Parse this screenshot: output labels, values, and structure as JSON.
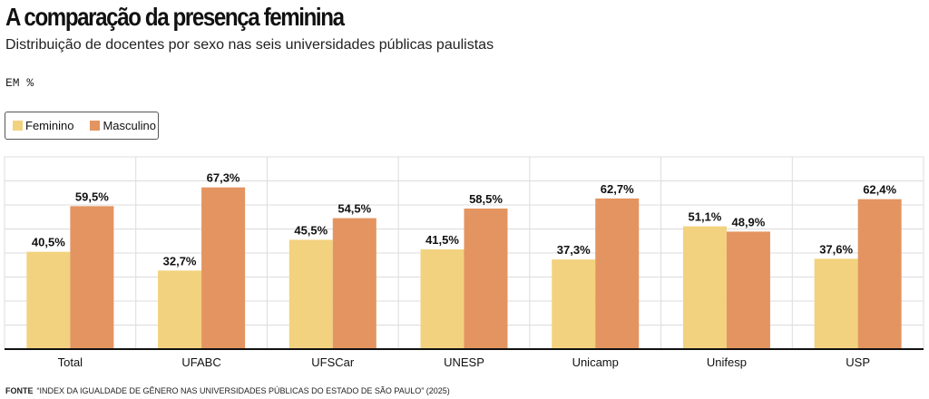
{
  "header": {
    "title": "A comparação da presença feminina",
    "subtitle": "Distribuição de docentes por sexo nas seis universidades públicas paulistas",
    "unit": "EM %"
  },
  "legend": {
    "female_label": "Feminino",
    "male_label": "Masculino"
  },
  "colors": {
    "female": "#f2d27e",
    "male": "#e39460",
    "grid": "#dcdcdc",
    "axis": "#111111"
  },
  "chart_data": {
    "type": "bar",
    "title": "A comparação da presença feminina",
    "xlabel": "",
    "ylabel": "",
    "ylim": [
      0,
      80
    ],
    "categories": [
      "Total",
      "UFABC",
      "UFSCar",
      "UNESP",
      "Unicamp",
      "Unifesp",
      "USP"
    ],
    "series": [
      {
        "name": "Feminino",
        "values": [
          40.5,
          32.7,
          45.5,
          41.5,
          37.3,
          51.1,
          37.6
        ],
        "labels": [
          "40,5%",
          "32,7%",
          "45,5%",
          "41,5%",
          "37,3%",
          "51,1%",
          "37,6%"
        ]
      },
      {
        "name": "Masculino",
        "values": [
          59.5,
          67.3,
          54.5,
          58.5,
          62.7,
          48.9,
          62.4
        ],
        "labels": [
          "59,5%",
          "67,3%",
          "54,5%",
          "58,5%",
          "62,7%",
          "48,9%",
          "62,4%"
        ]
      }
    ]
  },
  "footer": {
    "source_label": "FONTE",
    "source_text": "“INDEX DA IGUALDADE DE GÊNERO NAS UNIVERSIDADES PÚBLICAS DO ESTADO DE SÃO PAULO” (2025)"
  }
}
